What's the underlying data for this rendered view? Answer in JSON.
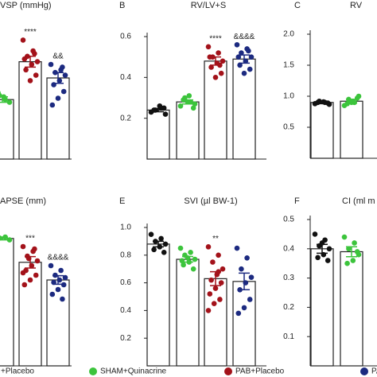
{
  "legend": [
    {
      "name": "+Placebo",
      "color": "#111111"
    },
    {
      "name": "SHAM+Quinacrine",
      "color": "#3cc43c"
    },
    {
      "name": "PAB+Placebo",
      "color": "#a3121a"
    },
    {
      "name": "PAB",
      "color": "#1c2a80"
    }
  ],
  "chart_data": [
    {
      "type": "bar",
      "title": "VSP (mmHg)",
      "ylim": [
        0,
        100
      ],
      "values": [
        null,
        44,
        72,
        60
      ],
      "errors": [
        null,
        2,
        4,
        4
      ],
      "points": [
        [],
        [
          40,
          44,
          47,
          42,
          46,
          49
        ],
        [
          88,
          80,
          76,
          72,
          70,
          66,
          62,
          58,
          74,
          78
        ],
        [
          70,
          66,
          64,
          62,
          58,
          55,
          50,
          45,
          40,
          68
        ]
      ],
      "annotations": [
        {
          "text": "****",
          "index": 2
        },
        {
          "text": "&&",
          "index": 3
        }
      ]
    },
    {
      "type": "bar",
      "panel": "B",
      "title": "RV/LV+S",
      "ylim": [
        0,
        0.6
      ],
      "yticks": [
        0.2,
        0.4,
        0.6
      ],
      "values": [
        0.24,
        0.28,
        0.48,
        0.49
      ],
      "errors": [
        0.008,
        0.01,
        0.02,
        0.02
      ],
      "points": [
        [
          0.23,
          0.25,
          0.24,
          0.22,
          0.26,
          0.24,
          0.25
        ],
        [
          0.26,
          0.28,
          0.3,
          0.27,
          0.31,
          0.29,
          0.25,
          0.28
        ],
        [
          0.55,
          0.52,
          0.5,
          0.48,
          0.47,
          0.45,
          0.42,
          0.4,
          0.5,
          0.46
        ],
        [
          0.56,
          0.54,
          0.52,
          0.5,
          0.48,
          0.46,
          0.44,
          0.42,
          0.5,
          0.53
        ]
      ],
      "annotations": [
        {
          "text": "****",
          "index": 2
        },
        {
          "text": "&&&&",
          "index": 3
        }
      ]
    },
    {
      "type": "bar",
      "panel": "C",
      "title": "RV",
      "ylim": [
        0,
        2.0
      ],
      "yticks": [
        0.5,
        {
          "value": 1,
          "label": "1.0"
        },
        1.5,
        {
          "value": 2,
          "label": "2.0"
        }
      ],
      "values": [
        0.9,
        0.92,
        null,
        null
      ],
      "errors": [
        0.02,
        0.03,
        null,
        null
      ],
      "points": [
        [
          0.88,
          0.9,
          0.92,
          0.87,
          0.91,
          0.9,
          0.89
        ],
        [
          0.85,
          0.9,
          0.95,
          1.0,
          0.92,
          0.88,
          0.97,
          0.9
        ],
        [],
        []
      ]
    },
    {
      "type": "bar",
      "title": "APSE (mm)",
      "ylim": [
        0,
        3
      ],
      "values": [
        null,
        2.67,
        2.17,
        1.8
      ],
      "errors": [
        null,
        0.03,
        0.12,
        0.09
      ],
      "points": [
        [],
        [
          2.65,
          2.7,
          2.68,
          2.64
        ],
        [
          2.5,
          2.4,
          2.3,
          2.2,
          2.1,
          2.0,
          1.9,
          1.8,
          1.7,
          2.45,
          2.25,
          1.95
        ],
        [
          2.1,
          2.0,
          1.9,
          1.85,
          1.8,
          1.75,
          1.7,
          1.6,
          1.5,
          1.4
        ]
      ],
      "annotations": [
        {
          "text": "***",
          "index": 2
        },
        {
          "text": "&&&&",
          "index": 3
        }
      ]
    },
    {
      "type": "bar",
      "panel": "E",
      "title": "SVI (µl BW-1)",
      "ylim": [
        0,
        1.0
      ],
      "yticks": [
        0.2,
        0.4,
        0.6,
        0.8,
        {
          "value": 1,
          "label": "1.0"
        }
      ],
      "values": [
        0.88,
        0.77,
        0.63,
        0.61
      ],
      "errors": [
        0.02,
        0.02,
        0.05,
        0.06
      ],
      "points": [
        [
          0.95,
          0.92,
          0.9,
          0.88,
          0.86,
          0.84,
          0.82
        ],
        [
          0.85,
          0.82,
          0.8,
          0.77,
          0.75,
          0.73,
          0.7,
          0.78,
          0.76
        ],
        [
          0.86,
          0.8,
          0.75,
          0.7,
          0.66,
          0.62,
          0.6,
          0.56,
          0.52,
          0.48,
          0.45,
          0.4,
          0.68
        ],
        [
          0.85,
          0.78,
          0.7,
          0.64,
          0.6,
          0.55,
          0.48,
          0.42,
          0.38
        ]
      ],
      "annotations": [
        {
          "text": "**",
          "index": 2
        }
      ]
    },
    {
      "type": "bar",
      "panel": "F",
      "title": "CI (ml m",
      "ylim": [
        0,
        0.5
      ],
      "yticks": [
        0.1,
        0.2,
        0.3,
        0.4,
        0.5
      ],
      "values": [
        0.4,
        0.39,
        null,
        null
      ],
      "errors": [
        0.015,
        0.017,
        null,
        null
      ],
      "points": [
        [
          0.45,
          0.43,
          0.41,
          0.4,
          0.38,
          0.37,
          0.36,
          0.42
        ],
        [
          0.44,
          0.42,
          0.4,
          0.38,
          0.36,
          0.35,
          0.39
        ],
        [],
        []
      ]
    }
  ]
}
